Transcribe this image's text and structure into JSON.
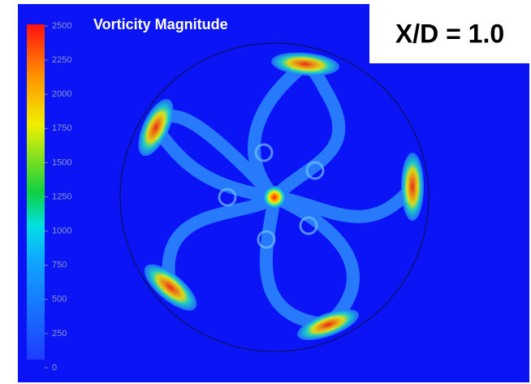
{
  "title": "Vorticity Magnitude",
  "panel_label": "X/D = 1.0",
  "colorbar": {
    "lim": [
      0,
      2500
    ],
    "ticks": [
      0,
      250,
      500,
      750,
      1000,
      1250,
      1500,
      1750,
      2000,
      2250,
      2500
    ]
  }
}
